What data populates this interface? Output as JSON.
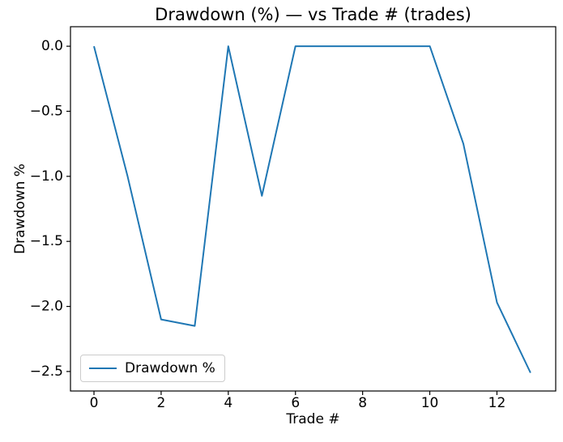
{
  "chart_data": {
    "type": "line",
    "title": "Drawdown (%) — vs Trade # (trades)",
    "xlabel": "Trade #",
    "ylabel": "Drawdown %",
    "x": [
      0,
      1,
      2,
      3,
      4,
      5,
      6,
      7,
      8,
      9,
      10,
      11,
      12,
      13
    ],
    "series": [
      {
        "name": "Drawdown %",
        "color": "#1f77b4",
        "values": [
          0.0,
          -1.0,
          -2.1,
          -2.15,
          0.0,
          -1.15,
          0.0,
          0.0,
          0.0,
          0.0,
          0.0,
          -0.75,
          -1.97,
          -2.51
        ]
      }
    ],
    "xlim": [
      -0.7,
      13.75
    ],
    "ylim": [
      -2.65,
      0.15
    ],
    "xticks": [
      0,
      2,
      4,
      6,
      8,
      10,
      12
    ],
    "xtick_labels": [
      "0",
      "2",
      "4",
      "6",
      "8",
      "10",
      "12"
    ],
    "yticks": [
      0,
      -0.5,
      -1,
      -1.5,
      -2,
      -2.5
    ],
    "ytick_labels": [
      "0.0",
      "−0.5",
      "−1.0",
      "−1.5",
      "−2.0",
      "−2.5"
    ],
    "grid": false,
    "legend": {
      "position": "lower left",
      "label": "Drawdown %"
    },
    "colors": {
      "line": "#1f77b4",
      "text": "#000000",
      "background": "#ffffff",
      "legend_border": "#cccccc"
    }
  }
}
